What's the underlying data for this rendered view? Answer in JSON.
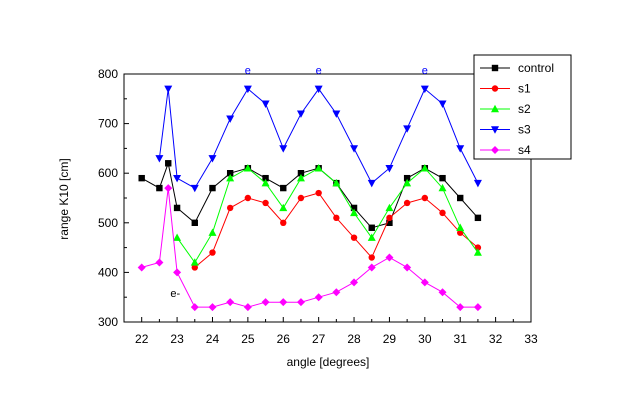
{
  "chart_data": {
    "type": "line",
    "title": "",
    "xlabel": "angle [degrees]",
    "ylabel": "range K10 [cm]",
    "xlim": [
      21.5,
      33
    ],
    "ylim": [
      300,
      800
    ],
    "xticks": [
      22,
      23,
      24,
      25,
      26,
      27,
      28,
      29,
      30,
      31,
      32,
      33
    ],
    "yticks": [
      300,
      400,
      500,
      600,
      700,
      800
    ],
    "grid": false,
    "legend_position": "top-right",
    "series": [
      {
        "name": "control",
        "color": "#000000",
        "marker": "square",
        "x": [
          22,
          22.5,
          22.75,
          23,
          23.5,
          24,
          24.5,
          25,
          25.5,
          26,
          26.5,
          27,
          27.5,
          28,
          28.5,
          29,
          29.5,
          30,
          30.5,
          31,
          31.5
        ],
        "y": [
          590,
          570,
          620,
          530,
          500,
          570,
          600,
          610,
          590,
          570,
          600,
          610,
          580,
          530,
          490,
          500,
          590,
          610,
          590,
          550,
          510
        ]
      },
      {
        "name": "s1",
        "color": "#ff0000",
        "marker": "circle",
        "x": [
          23.5,
          24,
          24.5,
          25,
          25.5,
          26,
          26.5,
          27,
          27.5,
          28,
          28.5,
          29,
          29.5,
          30,
          30.5,
          31,
          31.5
        ],
        "y": [
          410,
          440,
          530,
          550,
          540,
          500,
          550,
          560,
          510,
          470,
          430,
          510,
          540,
          550,
          520,
          480,
          450
        ]
      },
      {
        "name": "s2",
        "color": "#00ff00",
        "marker": "triangle-up",
        "x": [
          23,
          23.5,
          24,
          24.5,
          25,
          25.5,
          26,
          26.5,
          27,
          27.5,
          28,
          28.5,
          29,
          29.5,
          30,
          30.5,
          31,
          31.5
        ],
        "y": [
          470,
          420,
          480,
          590,
          610,
          580,
          530,
          590,
          610,
          580,
          520,
          470,
          530,
          580,
          610,
          570,
          490,
          440
        ]
      },
      {
        "name": "s3",
        "color": "#0000ff",
        "marker": "triangle-down",
        "x": [
          22.5,
          22.75,
          23,
          23.5,
          24,
          24.5,
          25,
          25.5,
          26,
          26.5,
          27,
          27.5,
          28,
          28.5,
          29,
          29.5,
          30,
          30.5,
          31,
          31.5
        ],
        "y": [
          630,
          770,
          590,
          570,
          630,
          710,
          770,
          740,
          650,
          720,
          770,
          720,
          650,
          580,
          610,
          690,
          770,
          740,
          650,
          580
        ]
      },
      {
        "name": "s4",
        "color": "#ff00ff",
        "marker": "diamond",
        "x": [
          22,
          22.5,
          22.75,
          23,
          23.5,
          24,
          24.5,
          25,
          25.5,
          26,
          26.5,
          27,
          27.5,
          28,
          28.5,
          29,
          29.5,
          30,
          30.5,
          31,
          31.5
        ],
        "y": [
          410,
          420,
          570,
          400,
          330,
          330,
          340,
          330,
          340,
          340,
          340,
          350,
          360,
          380,
          410,
          430,
          410,
          380,
          360,
          330,
          330
        ]
      }
    ],
    "annotations": [
      {
        "text": "e",
        "x": 25,
        "y": 800,
        "color": "#0000ff"
      },
      {
        "text": "e",
        "x": 27,
        "y": 800,
        "color": "#0000ff"
      },
      {
        "text": "e",
        "x": 30,
        "y": 800,
        "color": "#0000ff"
      },
      {
        "text": "e-",
        "x": 22.95,
        "y": 350,
        "color": "#000000"
      }
    ]
  }
}
